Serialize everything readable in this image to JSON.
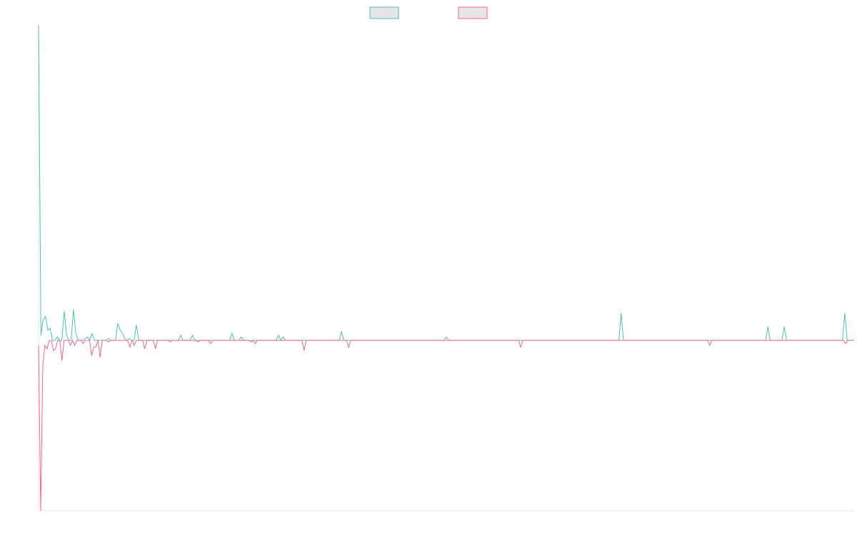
{
  "chart_data": {
    "type": "line",
    "title": "",
    "xlabel": "",
    "ylabel": "",
    "ylim": [
      -1.0,
      1.85
    ],
    "grid": false,
    "legend_position": "top-center",
    "series": [
      {
        "color": "#4bc0c0",
        "legend_fill": "#e6e6e6",
        "values": [
          1.85,
          0.03,
          0.12,
          0.14,
          0.06,
          0.07,
          0.0,
          0.0,
          0.02,
          0.0,
          0.0,
          0.17,
          0.03,
          0.0,
          0.0,
          0.18,
          0.04,
          0.0,
          0.0,
          0.0,
          0.01,
          0.02,
          0.0,
          0.04,
          0.0,
          0.0,
          0.0,
          0.0,
          0.0,
          0.0,
          0.01,
          0.0,
          0.0,
          0.0,
          0.1,
          0.06,
          0.04,
          0.01,
          0.0,
          0.01,
          0.0,
          0.0,
          0.09,
          0.0,
          0.0,
          0.0,
          0.0,
          0.0,
          0.0,
          0.0,
          0.0,
          0.0,
          0.0,
          0.0,
          0.0,
          0.0,
          0.0,
          0.0,
          0.0,
          0.0,
          0.0,
          0.03,
          0.0,
          0.0,
          0.0,
          0.0,
          0.03,
          0.0,
          0.0,
          0.0,
          0.0,
          0.0,
          0.0,
          0.0,
          0.0,
          0.0,
          0.0,
          0.0,
          0.0,
          0.0,
          0.0,
          0.0,
          0.0,
          0.04,
          0.0,
          0.0,
          0.0,
          0.02,
          0.0,
          0.0,
          0.0,
          0.0,
          0.0,
          0.0,
          0.0,
          0.0,
          0.0,
          0.0,
          0.0,
          0.0,
          0.0,
          0.0,
          0.0,
          0.03,
          0.0,
          0.02,
          0.0,
          0.0,
          0.0,
          0.0,
          0.0,
          0.0,
          0.0,
          0.0,
          0.0,
          0.0,
          0.0,
          0.0,
          0.0,
          0.0,
          0.0,
          0.0,
          0.0,
          0.0,
          0.0,
          0.0,
          0.0,
          0.0,
          0.0,
          0.0,
          0.05,
          0.0,
          0.0,
          0.0,
          0.0,
          0.0,
          0.0,
          0.0,
          0.0,
          0.0,
          0.0,
          0.0,
          0.0,
          0.0,
          0.0,
          0.0,
          0.0,
          0.0,
          0.0,
          0.0,
          0.0,
          0.0,
          0.0,
          0.0,
          0.0,
          0.0,
          0.0,
          0.0,
          0.0,
          0.0,
          0.0,
          0.0,
          0.0,
          0.0,
          0.0,
          0.0,
          0.0,
          0.0,
          0.0,
          0.0,
          0.0,
          0.0,
          0.0,
          0.0,
          0.0,
          0.02,
          0.0,
          0.0,
          0.0,
          0.0,
          0.0,
          0.0,
          0.0,
          0.0,
          0.0,
          0.0,
          0.0,
          0.0,
          0.0,
          0.0,
          0.0,
          0.0,
          0.0,
          0.0,
          0.0,
          0.0,
          0.0,
          0.0,
          0.0,
          0.0,
          0.0,
          0.0,
          0.0,
          0.0,
          0.0,
          0.0,
          0.0,
          0.0,
          0.0,
          0.0,
          0.0,
          0.0,
          0.0,
          0.0,
          0.0,
          0.0,
          0.0,
          0.0,
          0.0,
          0.0,
          0.0,
          0.0,
          0.0,
          0.0,
          0.0,
          0.0,
          0.0,
          0.0,
          0.0,
          0.0,
          0.0,
          0.0,
          0.0,
          0.0,
          0.0,
          0.0,
          0.0,
          0.0,
          0.0,
          0.0,
          0.0,
          0.0,
          0.0,
          0.0,
          0.0,
          0.0,
          0.0,
          0.0,
          0.0,
          0.0,
          0.16,
          0.0,
          0.0,
          0.0,
          0.0,
          0.0,
          0.0,
          0.0,
          0.0,
          0.0,
          0.0,
          0.0,
          0.0,
          0.0,
          0.0,
          0.0,
          0.0,
          0.0,
          0.0,
          0.0,
          0.0,
          0.0,
          0.0,
          0.0,
          0.0,
          0.0,
          0.0,
          0.0,
          0.0,
          0.0,
          0.0,
          0.0,
          0.0,
          0.0,
          0.0,
          0.0,
          0.0,
          0.0,
          0.0,
          0.0,
          0.0,
          0.0,
          0.0,
          0.0,
          0.0,
          0.0,
          0.0,
          0.0,
          0.0,
          0.0,
          0.0,
          0.0,
          0.0,
          0.0,
          0.0,
          0.0,
          0.0,
          0.0,
          0.0,
          0.0,
          0.0,
          0.0,
          0.0,
          0.08,
          0.0,
          0.0,
          0.0,
          0.0,
          0.0,
          0.0,
          0.08,
          0.0,
          0.0,
          0.0,
          0.0,
          0.0,
          0.0,
          0.0,
          0.0,
          0.0,
          0.0,
          0.0,
          0.0,
          0.0,
          0.0,
          0.0,
          0.0,
          0.0,
          0.0,
          0.0,
          0.0,
          0.0,
          0.0,
          0.0,
          0.0,
          0.0,
          0.16,
          0.0,
          0.0,
          0.0,
          0.0
        ]
      },
      {
        "color": "#ff6384",
        "legend_fill": "#e6e6e6",
        "values": [
          -0.03,
          -1.0,
          -0.15,
          -0.03,
          -0.05,
          0.0,
          0.0,
          -0.06,
          -0.05,
          0.0,
          0.0,
          -0.12,
          0.0,
          0.0,
          0.0,
          -0.03,
          0.0,
          -0.03,
          0.0,
          0.0,
          0.0,
          -0.02,
          0.0,
          0.0,
          0.0,
          -0.09,
          -0.04,
          -0.04,
          0.0,
          -0.1,
          0.0,
          0.0,
          0.0,
          -0.01,
          0.0,
          0.0,
          0.0,
          0.0,
          0.0,
          0.0,
          0.0,
          0.0,
          0.0,
          -0.04,
          0.0,
          -0.03,
          0.0,
          0.0,
          0.0,
          0.0,
          -0.05,
          0.0,
          0.0,
          0.0,
          0.0,
          -0.05,
          0.0,
          0.0,
          0.0,
          0.0,
          0.0,
          0.0,
          -0.01,
          0.0,
          0.0,
          0.0,
          0.0,
          0.0,
          0.0,
          0.0,
          0.0,
          0.0,
          0.0,
          0.0,
          0.0,
          -0.01,
          0.0,
          0.0,
          0.0,
          0.0,
          0.0,
          -0.02,
          0.0,
          0.0,
          0.0,
          0.0,
          0.0,
          0.0,
          0.0,
          0.0,
          0.0,
          0.0,
          0.0,
          0.0,
          0.0,
          0.0,
          0.0,
          0.0,
          0.0,
          0.0,
          -0.01,
          0.0,
          -0.02,
          0.0,
          0.0,
          0.0,
          0.0,
          0.0,
          0.0,
          0.0,
          0.0,
          0.0,
          0.0,
          0.0,
          0.0,
          0.0,
          0.0,
          0.0,
          0.0,
          0.0,
          0.0,
          0.0,
          0.0,
          0.0,
          0.0,
          -0.06,
          0.0,
          0.0,
          0.0,
          0.0,
          0.0,
          0.0,
          0.0,
          0.0,
          0.0,
          0.0,
          0.0,
          0.0,
          0.0,
          0.0,
          0.0,
          0.0,
          0.0,
          0.0,
          0.0,
          0.0,
          -0.04,
          0.0,
          0.0,
          0.0,
          0.0,
          0.0,
          0.0,
          0.0,
          0.0,
          0.0,
          0.0,
          0.0,
          0.0,
          0.0,
          0.0,
          0.0,
          0.0,
          0.0,
          0.0,
          0.0,
          0.0,
          0.0,
          0.0,
          0.0,
          0.0,
          0.0,
          0.0,
          0.0,
          0.0,
          0.0,
          0.0,
          0.0,
          0.0,
          0.0,
          0.0,
          0.0,
          0.0,
          0.0,
          0.0,
          0.0,
          0.0,
          0.0,
          0.0,
          0.0,
          0.0,
          0.0,
          0.0,
          0.0,
          0.0,
          0.0,
          0.0,
          0.0,
          0.0,
          0.0,
          0.0,
          0.0,
          0.0,
          0.0,
          0.0,
          0.0,
          0.0,
          0.0,
          0.0,
          0.0,
          0.0,
          0.0,
          0.0,
          0.0,
          0.0,
          0.0,
          0.0,
          0.0,
          0.0,
          0.0,
          0.0,
          0.0,
          0.0,
          0.0,
          0.0,
          0.0,
          0.0,
          -0.04,
          0.0,
          0.0,
          0.0,
          0.0,
          0.0,
          0.0,
          0.0,
          0.0,
          0.0,
          0.0,
          0.0,
          0.0,
          0.0,
          0.0,
          0.0,
          0.0,
          0.0,
          0.0,
          0.0,
          0.0,
          0.0,
          0.0,
          0.0,
          0.0,
          0.0,
          0.0,
          0.0,
          0.0,
          0.0,
          0.0,
          0.0,
          0.0,
          0.0,
          0.0,
          0.0,
          0.0,
          0.0,
          0.0,
          0.0,
          0.0,
          0.0,
          0.0,
          0.0,
          0.0,
          0.0,
          0.0,
          0.0,
          0.0,
          0.0,
          0.0,
          0.0,
          0.0,
          0.0,
          0.0,
          0.0,
          0.0,
          0.0,
          0.0,
          0.0,
          0.0,
          0.0,
          0.0,
          0.0,
          0.0,
          0.0,
          0.0,
          0.0,
          0.0,
          0.0,
          0.0,
          0.0,
          0.0,
          0.0,
          0.0,
          0.0,
          0.0,
          0.0,
          0.0,
          0.0,
          0.0,
          0.0,
          0.0,
          0.0,
          0.0,
          0.0,
          0.0,
          0.0,
          0.0,
          -0.03,
          0.0,
          0.0,
          0.0,
          0.0,
          0.0,
          0.0,
          0.0,
          0.0,
          0.0,
          0.0,
          0.0,
          0.0,
          0.0,
          0.0,
          0.0,
          0.0,
          0.0,
          0.0,
          0.0,
          0.0,
          0.0,
          0.0,
          0.0,
          0.0,
          0.0,
          0.0,
          0.0,
          0.0,
          0.0,
          0.0,
          0.0,
          0.0,
          0.0,
          0.0,
          0.0,
          0.0,
          0.0,
          0.0,
          0.0,
          0.0,
          0.0,
          0.0,
          0.0,
          0.0,
          0.0,
          0.0,
          0.0,
          0.0,
          0.0,
          0.0,
          0.0,
          0.0,
          0.0,
          0.0,
          0.0,
          0.0,
          0.0,
          0.0,
          0.0,
          0.0,
          0.0,
          0.0,
          0.0,
          -0.02,
          0.0,
          0.0,
          0.0,
          0.0
        ]
      }
    ]
  }
}
